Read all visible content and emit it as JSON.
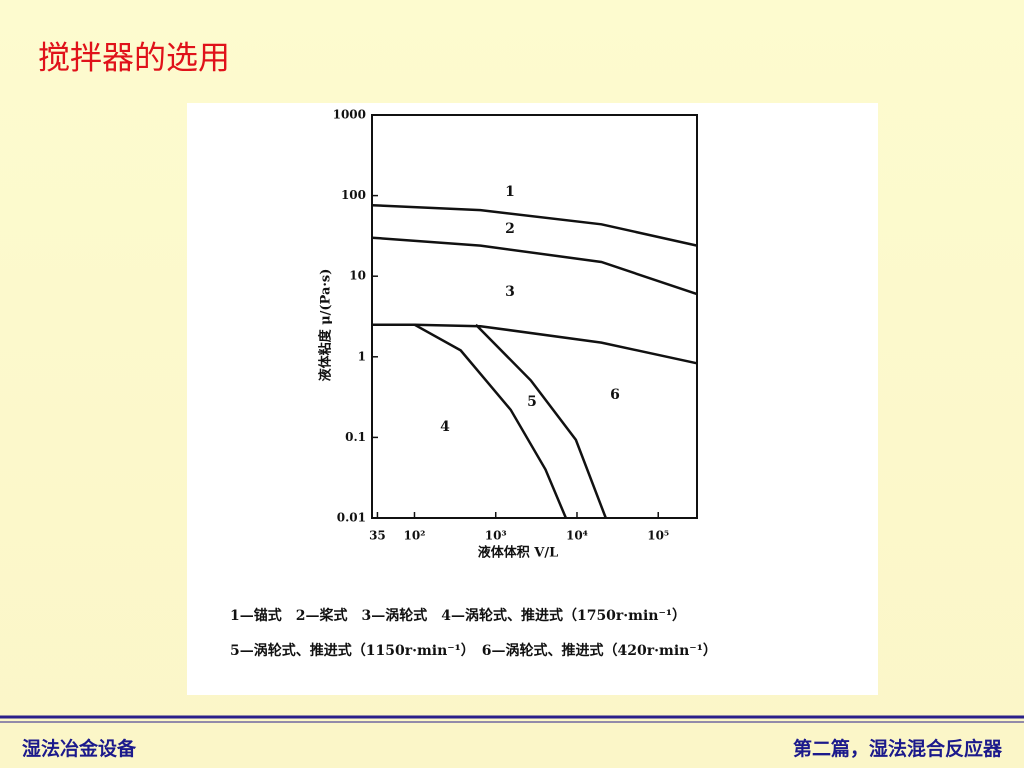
{
  "slide": {
    "title": "搅拌器的选用",
    "footer_left": "湿法冶金设备",
    "footer_right": "第二篇，湿法混合反应器"
  },
  "chart_data": {
    "type": "line",
    "x_label": "液体体积 V/L",
    "y_label": "液体粘度 μ/(Pa·s)",
    "xscale": "log",
    "yscale": "log",
    "xlim": [
      30,
      300000
    ],
    "ylim": [
      0.01,
      1000
    ],
    "xticks": [
      35,
      {
        "value": 100,
        "label": "10²"
      },
      {
        "value": 1000,
        "label": "10³"
      },
      {
        "value": 10000,
        "label": "10⁴"
      },
      {
        "value": 100000,
        "label": "10⁵"
      }
    ],
    "yticks": [
      0.01,
      0.1,
      1,
      10,
      100,
      1000
    ],
    "series": [
      {
        "color": "#111111",
        "x": [
          30,
          650,
          20000,
          300000
        ],
        "values": [
          76,
          66,
          44,
          24
        ]
      },
      {
        "color": "#111111",
        "x": [
          30,
          650,
          20000,
          300000
        ],
        "values": [
          30,
          24,
          15,
          6
        ]
      },
      {
        "color": "#111111",
        "x": [
          30,
          100,
          650,
          20000,
          300000
        ],
        "values": [
          2.5,
          2.5,
          2.4,
          1.5,
          0.83
        ]
      },
      {
        "color": "#111111",
        "x": [
          100,
          370,
          1530,
          4100,
          7300
        ],
        "values": [
          2.5,
          1.2,
          0.22,
          0.04,
          0.01
        ]
      },
      {
        "color": "#111111",
        "x": [
          570,
          2700,
          9700,
          22600
        ],
        "values": [
          2.5,
          0.51,
          0.093,
          0.01
        ]
      }
    ],
    "annotations": [
      "1",
      "2",
      "3",
      "4",
      "5",
      "6"
    ],
    "caption": [
      "1—锚式　2—桨式　3—涡轮式　4—涡轮式、推进式（1750r·min⁻¹）",
      "5—涡轮式、推进式（1150r·min⁻¹）　6—涡轮式、推进式（420r·min⁻¹）"
    ]
  }
}
